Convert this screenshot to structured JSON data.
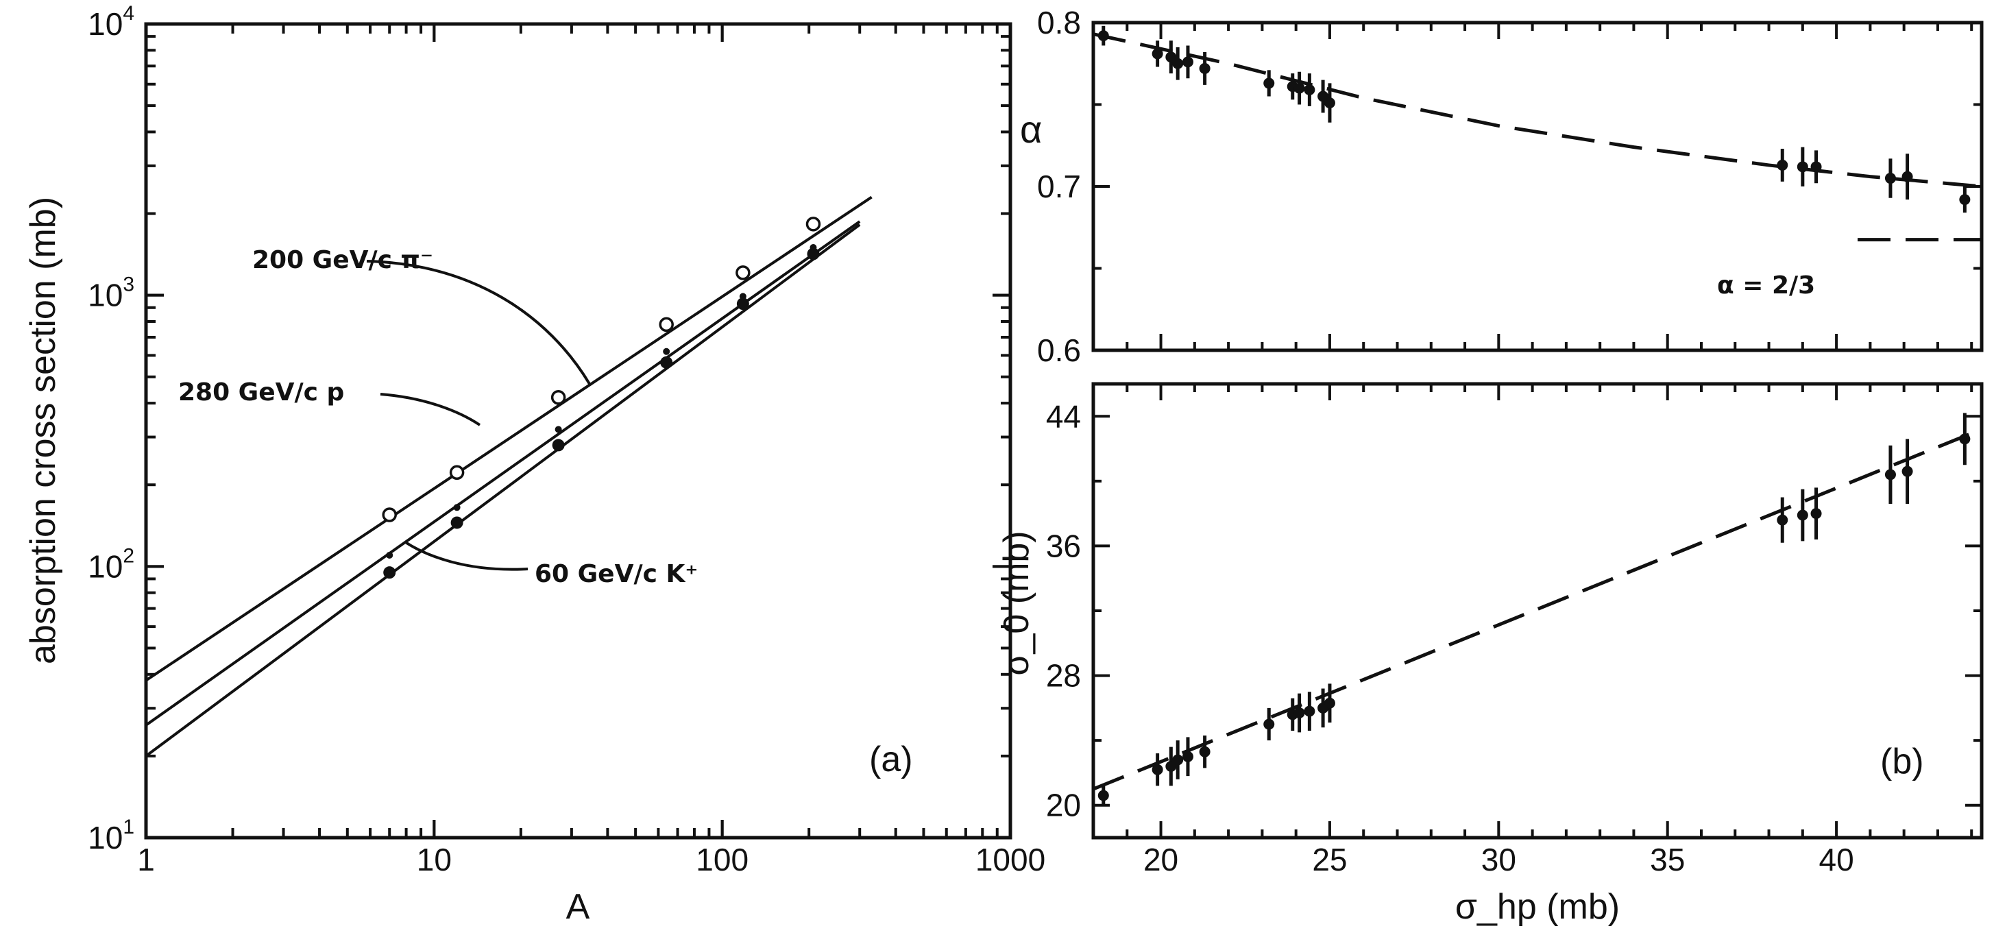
{
  "chart_data": [
    {
      "panel": "(a)",
      "type": "line",
      "scale": "log-log",
      "xlabel": "A",
      "ylabel": "absorption cross section (mb)",
      "xlim": [
        1,
        1000
      ],
      "ylim": [
        10,
        10000
      ],
      "xticks": [
        {
          "value": 1,
          "label": "1"
        },
        {
          "value": 10,
          "label": "10"
        },
        {
          "value": 100,
          "label": "100"
        },
        {
          "value": 1000,
          "label": "1000"
        }
      ],
      "yticks": [
        {
          "value": 10,
          "base": "10",
          "exp": "1"
        },
        {
          "value": 100,
          "base": "10",
          "exp": "2"
        },
        {
          "value": 1000,
          "base": "10",
          "exp": "3"
        },
        {
          "value": 10000,
          "base": "10",
          "exp": "4"
        }
      ],
      "panel_label": "(a)",
      "series": [
        {
          "name": "200 GeV/c π⁻",
          "label": "200 GeV/c π⁻",
          "marker": "open-circle",
          "line": {
            "x": [
              1,
              330
            ],
            "y": [
              38,
              2300
            ]
          },
          "points": {
            "x": [
              7,
              12,
              27,
              64,
              118,
              207
            ],
            "y": [
              155,
              222,
              420,
              780,
              1210,
              1830
            ]
          }
        },
        {
          "name": "280 GeV/c p",
          "label": "280 GeV/c p",
          "marker": "small-dot",
          "line": {
            "x": [
              1,
              300
            ],
            "y": [
              26,
              1870
            ]
          },
          "points": {
            "x": [
              7,
              12,
              27,
              64,
              118,
              207
            ],
            "y": [
              110,
              165,
              320,
              620,
              990,
              1500
            ]
          }
        },
        {
          "name": "60 GeV/c K⁺",
          "label": "60 GeV/c K⁺",
          "marker": "filled-circle",
          "line": {
            "x": [
              1,
              300
            ],
            "y": [
              20,
              1820
            ]
          },
          "points": {
            "x": [
              7,
              12,
              27,
              64,
              118,
              207
            ],
            "y": [
              95,
              145,
              280,
              565,
              930,
              1420
            ]
          }
        }
      ]
    },
    {
      "panel": "(b) top",
      "type": "scatter",
      "xlabel": "",
      "ylabel": "α",
      "xlim": [
        18,
        44.3
      ],
      "ylim": [
        0.6,
        0.8
      ],
      "yticks": [
        {
          "value": 0.6,
          "label": "0.6"
        },
        {
          "value": 0.7,
          "label": "0.7"
        },
        {
          "value": 0.8,
          "label": "0.8"
        }
      ],
      "annotation": "α = 2/3",
      "reference_line": {
        "name": "α = 2/3",
        "y": 0.6667
      },
      "fit": {
        "x": [
          18,
          22,
          26,
          30,
          34,
          38,
          41,
          44.3
        ],
        "y": [
          0.793,
          0.775,
          0.754,
          0.737,
          0.724,
          0.713,
          0.706,
          0.7
        ]
      },
      "points": {
        "x": [
          18.3,
          19.9,
          20.3,
          20.5,
          20.8,
          21.3,
          23.2,
          23.9,
          24.1,
          24.4,
          24.8,
          25.0,
          38.4,
          39.0,
          39.4,
          41.6,
          42.1,
          43.8
        ],
        "y": [
          0.792,
          0.781,
          0.779,
          0.775,
          0.776,
          0.772,
          0.763,
          0.761,
          0.76,
          0.759,
          0.755,
          0.751,
          0.713,
          0.712,
          0.712,
          0.705,
          0.706,
          0.692
        ],
        "err": [
          0.006,
          0.008,
          0.01,
          0.01,
          0.01,
          0.01,
          0.008,
          0.008,
          0.01,
          0.01,
          0.01,
          0.012,
          0.01,
          0.012,
          0.01,
          0.012,
          0.014,
          0.008
        ]
      }
    },
    {
      "panel": "(b) bottom",
      "type": "scatter",
      "xlabel": "σ_hp (mb)",
      "ylabel": "σ_0 (mb)",
      "xlim": [
        18,
        44.3
      ],
      "ylim": [
        18,
        46
      ],
      "xticks": [
        {
          "value": 20,
          "label": "20"
        },
        {
          "value": 25,
          "label": "25"
        },
        {
          "value": 30,
          "label": "30"
        },
        {
          "value": 35,
          "label": "35"
        },
        {
          "value": 40,
          "label": "40"
        }
      ],
      "yticks": [
        {
          "value": 20,
          "label": "20"
        },
        {
          "value": 28,
          "label": "28"
        },
        {
          "value": 36,
          "label": "36"
        },
        {
          "value": 44,
          "label": "44"
        }
      ],
      "panel_label": "(b)",
      "fit": {
        "x": [
          18,
          44.3
        ],
        "y": [
          21.0,
          43.2
        ]
      },
      "points": {
        "x": [
          18.3,
          19.9,
          20.3,
          20.5,
          20.8,
          21.3,
          23.2,
          23.9,
          24.1,
          24.4,
          24.8,
          25.0,
          38.4,
          39.0,
          39.4,
          41.6,
          42.1,
          43.8
        ],
        "y": [
          20.6,
          22.2,
          22.4,
          22.8,
          23.0,
          23.3,
          25.0,
          25.6,
          25.7,
          25.8,
          26.0,
          26.3,
          37.6,
          37.9,
          38.0,
          40.4,
          40.6,
          42.6
        ],
        "err": [
          0.6,
          1.0,
          1.2,
          1.2,
          1.2,
          1.0,
          1.0,
          1.0,
          1.2,
          1.2,
          1.2,
          1.2,
          1.4,
          1.6,
          1.6,
          1.8,
          2.0,
          1.6
        ]
      }
    }
  ]
}
